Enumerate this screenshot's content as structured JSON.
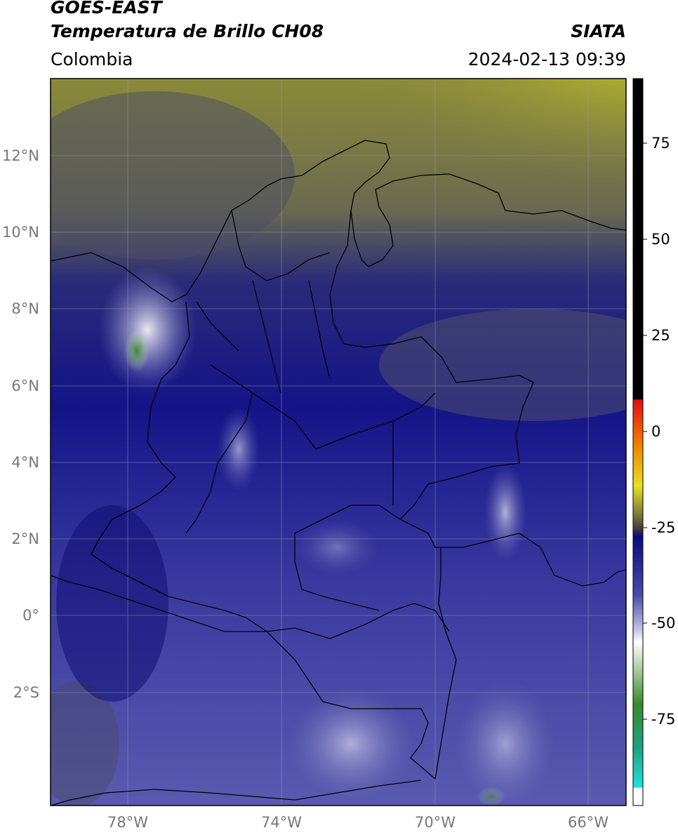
{
  "header": {
    "satellite": "GOES-EAST",
    "product": "Temperatura de Brillo CH08",
    "brand": "SIATA",
    "region": "Colombia",
    "datetime": "2024-02-13 09:39"
  },
  "map": {
    "lat_ticks": [
      "12°N",
      "10°N",
      "8°N",
      "6°N",
      "4°N",
      "2°N",
      "0°",
      "2°S"
    ],
    "lon_ticks": [
      "78°W",
      "74°W",
      "70°W",
      "66°W"
    ],
    "grid": true
  },
  "colorbar": {
    "tick_labels": [
      "75",
      "50",
      "25",
      "0",
      "-25",
      "-50",
      "-75"
    ],
    "colors": {
      "warm_black": "#000000",
      "red": "#e01010",
      "orange": "#f07a00",
      "yellow": "#e8e020",
      "olive": "#7a7a3a",
      "dark_blue": "#0a0a80",
      "light_lavender": "#c8c8e8",
      "green": "#3a8a2a",
      "cyan": "#20e0e0"
    }
  }
}
